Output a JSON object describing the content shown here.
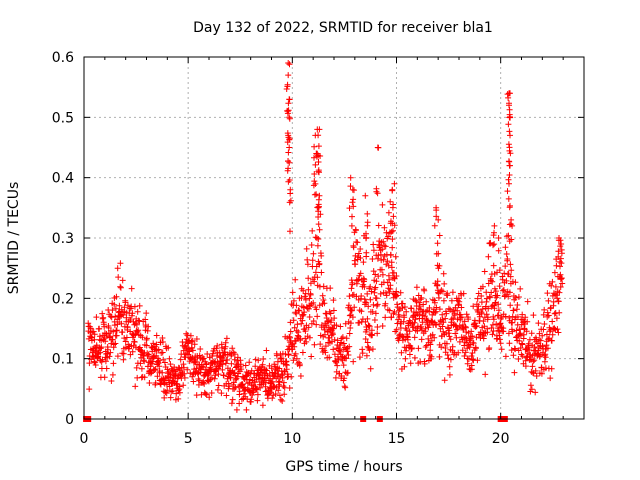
{
  "chart_data": {
    "type": "scatter",
    "title": "Day 132 of 2022, SRMTID for receiver bla1",
    "xlabel": "GPS time / hours",
    "ylabel": "SRMTID / TECUs",
    "xlim": [
      0,
      24
    ],
    "ylim": [
      0,
      0.6
    ],
    "xticks": [
      0,
      5,
      10,
      15,
      20
    ],
    "xtick_labels": [
      "0",
      "5",
      "10",
      "15",
      "20"
    ],
    "yticks": [
      0,
      0.1,
      0.2,
      0.3,
      0.4,
      0.5,
      0.6
    ],
    "ytick_labels": [
      "0",
      "0.1",
      "0.2",
      "0.3",
      "0.4",
      "0.5",
      "0.6"
    ],
    "grid": true,
    "marker": "plus",
    "color": "#ff0000",
    "series": [
      {
        "name": "SRMTID",
        "envelope_x": [
          0.2,
          0.5,
          1.0,
          1.5,
          1.7,
          2.0,
          2.5,
          3.0,
          3.5,
          4.0,
          4.5,
          5.0,
          5.5,
          6.0,
          6.5,
          7.0,
          7.5,
          8.0,
          8.5,
          9.0,
          9.5,
          9.8,
          10.0,
          10.3,
          10.6,
          11.0,
          11.2,
          11.5,
          12.0,
          12.3,
          12.7,
          13.0,
          13.3,
          13.6,
          14.0,
          14.3,
          14.6,
          15.0,
          15.5,
          16.0,
          16.5,
          17.0,
          17.5,
          18.0,
          18.5,
          19.0,
          19.5,
          19.8,
          20.0,
          20.3,
          20.5,
          21.0,
          21.5,
          22.0,
          22.5,
          22.9
        ],
        "envelope_y": [
          0.14,
          0.12,
          0.12,
          0.15,
          0.2,
          0.15,
          0.13,
          0.12,
          0.1,
          0.07,
          0.06,
          0.12,
          0.08,
          0.07,
          0.09,
          0.08,
          0.07,
          0.05,
          0.07,
          0.06,
          0.08,
          0.1,
          0.16,
          0.14,
          0.17,
          0.24,
          0.3,
          0.16,
          0.13,
          0.09,
          0.13,
          0.26,
          0.22,
          0.16,
          0.22,
          0.28,
          0.24,
          0.18,
          0.13,
          0.16,
          0.14,
          0.2,
          0.14,
          0.17,
          0.13,
          0.15,
          0.21,
          0.16,
          0.14,
          0.26,
          0.17,
          0.14,
          0.1,
          0.13,
          0.16,
          0.25
        ],
        "spread": [
          0.05,
          0.04,
          0.04,
          0.05,
          0.06,
          0.04,
          0.04,
          0.04,
          0.03,
          0.03,
          0.02,
          0.03,
          0.03,
          0.03,
          0.03,
          0.03,
          0.03,
          0.03,
          0.03,
          0.02,
          0.03,
          0.03,
          0.06,
          0.05,
          0.05,
          0.08,
          0.1,
          0.05,
          0.04,
          0.04,
          0.04,
          0.08,
          0.07,
          0.05,
          0.07,
          0.07,
          0.07,
          0.05,
          0.04,
          0.05,
          0.05,
          0.06,
          0.05,
          0.05,
          0.04,
          0.05,
          0.07,
          0.05,
          0.05,
          0.08,
          0.05,
          0.05,
          0.04,
          0.04,
          0.05,
          0.05
        ],
        "peaks": [
          [
            9.8,
            0.59
          ],
          [
            9.8,
            0.57
          ],
          [
            9.85,
            0.53
          ],
          [
            9.85,
            0.5
          ],
          [
            9.8,
            0.47
          ],
          [
            9.85,
            0.45
          ],
          [
            9.9,
            0.38
          ],
          [
            11.1,
            0.47
          ],
          [
            11.2,
            0.48
          ],
          [
            11.3,
            0.48
          ],
          [
            11.15,
            0.44
          ],
          [
            11.25,
            0.41
          ],
          [
            11.3,
            0.37
          ],
          [
            12.8,
            0.4
          ],
          [
            12.9,
            0.38
          ],
          [
            13.5,
            0.37
          ],
          [
            13.6,
            0.34
          ],
          [
            14.1,
            0.45
          ],
          [
            14.8,
            0.38
          ],
          [
            14.9,
            0.39
          ],
          [
            14.7,
            0.36
          ],
          [
            16.9,
            0.35
          ],
          [
            17.0,
            0.33
          ],
          [
            19.7,
            0.32
          ],
          [
            19.9,
            0.3
          ],
          [
            20.4,
            0.54
          ],
          [
            20.45,
            0.54
          ],
          [
            20.4,
            0.52
          ],
          [
            20.45,
            0.47
          ],
          [
            20.45,
            0.42
          ],
          [
            20.4,
            0.39
          ],
          [
            20.5,
            0.33
          ],
          [
            22.8,
            0.3
          ],
          [
            22.9,
            0.29
          ]
        ],
        "zero_markers_x": [
          0.1,
          0.2,
          13.4,
          14.2,
          20.0,
          20.1,
          20.2
        ]
      }
    ]
  }
}
